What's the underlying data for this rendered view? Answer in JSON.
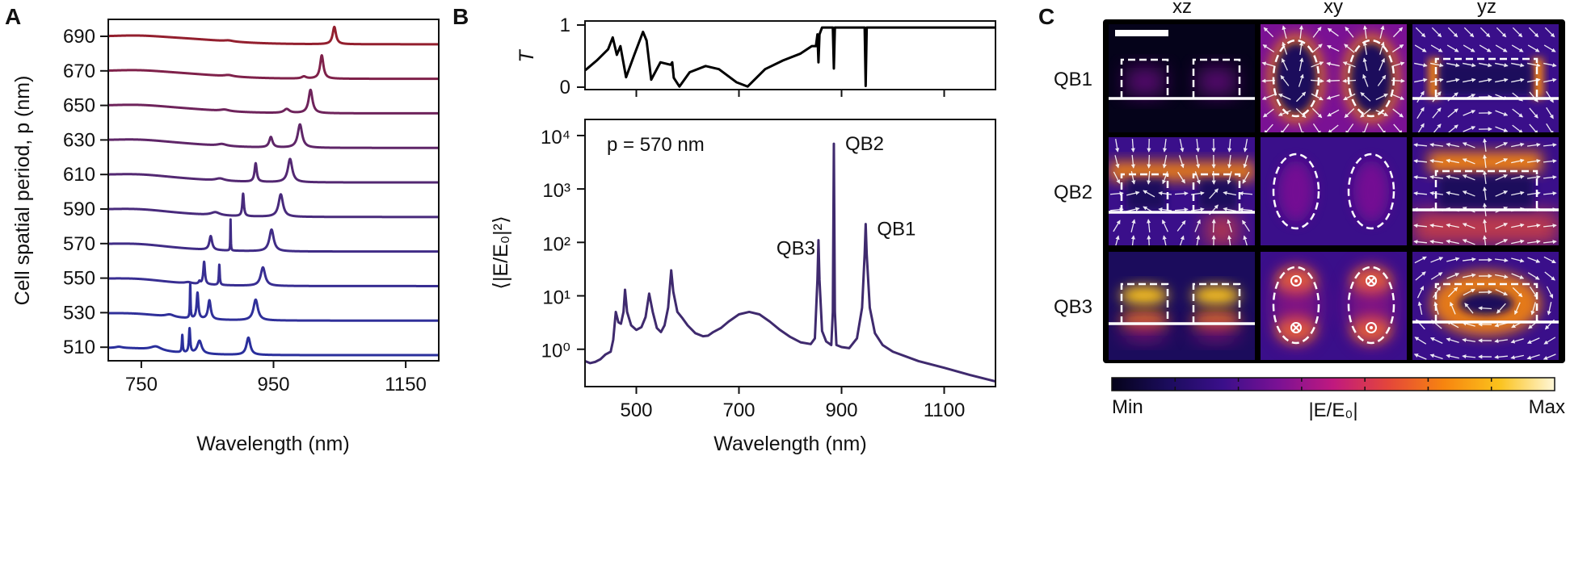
{
  "panel_labels": {
    "a": "A",
    "b": "B",
    "c": "C"
  },
  "chart_data": [
    {
      "id": "A",
      "type": "line",
      "xlabel": "Wavelength (nm)",
      "ylabel": "Cell spatial period, p (nm)",
      "xlim": [
        700,
        1200
      ],
      "xticks": [
        750,
        950,
        1150
      ],
      "xtick_labels": [
        "750",
        "950",
        "1150"
      ],
      "yticks": [
        510,
        530,
        550,
        570,
        590,
        610,
        630,
        650,
        670,
        690
      ],
      "ytick_labels": [
        "510",
        "530",
        "550",
        "570",
        "590",
        "610",
        "630",
        "650",
        "670",
        "690"
      ],
      "grid": false,
      "offset_spectra": true,
      "series": [
        {
          "period": 510,
          "color": "#2a2f9c",
          "peaks": [
            [
              716,
              0.7,
              6
            ],
            [
              772,
              2.3,
              10
            ],
            [
              812,
              10,
              0.8
            ],
            [
              823,
              14,
              1.2
            ],
            [
              838,
              7.5,
              4
            ],
            [
              912,
              10,
              3.5
            ]
          ]
        },
        {
          "period": 530,
          "color": "#30309a",
          "peaks": [
            [
              793,
              1.4,
              8
            ],
            [
              824,
              20,
              0.6
            ],
            [
              835,
              15,
              1.6
            ],
            [
              853,
              11,
              2.5
            ],
            [
              923,
              12,
              4
            ]
          ]
        },
        {
          "period": 550,
          "color": "#382e92",
          "peaks": [
            [
              821,
              0.8,
              6
            ],
            [
              838,
              1.5,
              1.5
            ],
            [
              845,
              13,
              1.5
            ],
            [
              868,
              11.7,
              0.8
            ],
            [
              934,
              10.7,
              4
            ]
          ]
        },
        {
          "period": 570,
          "color": "#402c86",
          "peaks": [
            [
              855,
              8,
              2.5
            ],
            [
              885,
              18,
              0.4
            ],
            [
              947,
              12.6,
              4
            ]
          ]
        },
        {
          "period": 590,
          "color": "#482a7c",
          "peaks": [
            [
              862,
              1.8,
              8
            ],
            [
              904,
              13,
              1.4
            ],
            [
              961,
              13,
              4
            ]
          ]
        },
        {
          "period": 610,
          "color": "#532872",
          "peaks": [
            [
              869,
              1.3,
              8
            ],
            [
              923,
              10.7,
              2
            ],
            [
              975,
              13.5,
              4
            ]
          ]
        },
        {
          "period": 630,
          "color": "#5f2668",
          "peaks": [
            [
              872,
              1.1,
              8
            ],
            [
              946,
              6,
              3
            ],
            [
              990,
              13.5,
              4
            ]
          ]
        },
        {
          "period": 650,
          "color": "#6e235b",
          "peaks": [
            [
              876,
              0.9,
              8
            ],
            [
              970,
              2.3,
              5
            ],
            [
              1006,
              13.5,
              3.5
            ]
          ]
        },
        {
          "period": 670,
          "color": "#7f214a",
          "peaks": [
            [
              882,
              0.8,
              8
            ],
            [
              996,
              1.2,
              4
            ],
            [
              1023,
              13.5,
              3
            ]
          ]
        },
        {
          "period": 690,
          "color": "#931f2e",
          "peaks": [
            [
              882,
              0.6,
              8
            ],
            [
              1042,
              10,
              3
            ]
          ]
        }
      ]
    },
    {
      "id": "B-top",
      "type": "line",
      "ylabel": "T",
      "xlim": [
        400,
        1200
      ],
      "ylim": [
        0,
        1
      ],
      "xticks": [
        500,
        700,
        900,
        1100
      ],
      "yticks": [
        0,
        1
      ],
      "ytick_labels": [
        "0",
        "1"
      ],
      "color": "#000000",
      "points": [
        [
          400,
          0.27
        ],
        [
          403,
          0.29
        ],
        [
          423,
          0.43
        ],
        [
          445,
          0.61
        ],
        [
          454,
          0.8
        ],
        [
          462,
          0.52
        ],
        [
          469,
          0.66
        ],
        [
          480,
          0.16
        ],
        [
          496,
          0.52
        ],
        [
          513,
          0.89
        ],
        [
          520,
          0.75
        ],
        [
          529,
          0.12
        ],
        [
          547,
          0.4
        ],
        [
          567,
          0.36
        ],
        [
          570,
          0.4
        ],
        [
          573,
          0.15
        ],
        [
          584,
          0.01
        ],
        [
          604,
          0.24
        ],
        [
          635,
          0.34
        ],
        [
          661,
          0.29
        ],
        [
          695,
          0.08
        ],
        [
          717,
          0.01
        ],
        [
          751,
          0.29
        ],
        [
          786,
          0.43
        ],
        [
          820,
          0.54
        ],
        [
          842,
          0.66
        ],
        [
          850,
          0.66
        ],
        [
          853,
          0.85
        ],
        [
          855,
          0.4
        ],
        [
          857,
          0.85
        ],
        [
          862,
          0.96
        ],
        [
          883,
          0.96
        ],
        [
          885,
          0.3
        ],
        [
          887,
          0.96
        ],
        [
          945,
          0.96
        ],
        [
          947,
          0.02
        ],
        [
          949,
          0.96
        ],
        [
          1200,
          0.96
        ]
      ]
    },
    {
      "id": "B-bottom",
      "type": "line",
      "xlabel": "Wavelength (nm)",
      "ylabel": "⟨|E/E₀|²⟩",
      "yscale": "log",
      "xlim": [
        400,
        1200
      ],
      "ylim": [
        0.2,
        20000
      ],
      "xticks": [
        500,
        700,
        900,
        1100
      ],
      "xtick_labels": [
        "500",
        "700",
        "900",
        "1100"
      ],
      "yticks": [
        1,
        10,
        100,
        1000,
        10000
      ],
      "ytick_labels": [
        "10⁰",
        "10¹",
        "10²",
        "10³",
        "10⁴"
      ],
      "color": "#3f2a6e",
      "annotation": "p = 570 nm",
      "peak_labels": [
        {
          "text": "QB3",
          "wavelength": 855,
          "value": 110
        },
        {
          "text": "QB2",
          "wavelength": 885,
          "value": 7000
        },
        {
          "text": "QB1",
          "wavelength": 947,
          "value": 220
        }
      ],
      "points": [
        [
          400,
          0.6
        ],
        [
          410,
          0.55
        ],
        [
          420,
          0.58
        ],
        [
          430,
          0.65
        ],
        [
          440,
          0.8
        ],
        [
          450,
          0.9
        ],
        [
          455,
          1.5
        ],
        [
          460,
          5
        ],
        [
          465,
          3.2
        ],
        [
          470,
          3
        ],
        [
          475,
          5
        ],
        [
          478,
          13
        ],
        [
          482,
          5
        ],
        [
          490,
          2.8
        ],
        [
          500,
          2.3
        ],
        [
          510,
          2.6
        ],
        [
          518,
          4
        ],
        [
          525,
          11
        ],
        [
          532,
          5
        ],
        [
          540,
          2.5
        ],
        [
          548,
          2.1
        ],
        [
          555,
          2.8
        ],
        [
          562,
          6
        ],
        [
          568,
          30
        ],
        [
          572,
          12
        ],
        [
          580,
          5
        ],
        [
          590,
          3.8
        ],
        [
          600,
          2.8
        ],
        [
          615,
          2
        ],
        [
          630,
          1.75
        ],
        [
          640,
          1.8
        ],
        [
          650,
          2.1
        ],
        [
          665,
          2.5
        ],
        [
          680,
          3.3
        ],
        [
          700,
          4.5
        ],
        [
          720,
          5
        ],
        [
          740,
          4.5
        ],
        [
          760,
          3.3
        ],
        [
          780,
          2.3
        ],
        [
          800,
          1.7
        ],
        [
          820,
          1.35
        ],
        [
          840,
          1.25
        ],
        [
          848,
          1.6
        ],
        [
          853,
          20
        ],
        [
          855,
          110
        ],
        [
          857,
          20
        ],
        [
          862,
          2.2
        ],
        [
          870,
          1.4
        ],
        [
          880,
          1.2
        ],
        [
          883,
          5
        ],
        [
          885,
          7000
        ],
        [
          887,
          5
        ],
        [
          890,
          1.2
        ],
        [
          900,
          1.1
        ],
        [
          915,
          1.05
        ],
        [
          930,
          1.6
        ],
        [
          940,
          6
        ],
        [
          945,
          60
        ],
        [
          947,
          220
        ],
        [
          949,
          60
        ],
        [
          955,
          6
        ],
        [
          965,
          2
        ],
        [
          980,
          1.2
        ],
        [
          1000,
          0.9
        ],
        [
          1050,
          0.6
        ],
        [
          1100,
          0.45
        ],
        [
          1150,
          0.33
        ],
        [
          1200,
          0.25
        ]
      ]
    },
    {
      "id": "C",
      "type": "heatmap",
      "columns": [
        "xz",
        "xy",
        "yz"
      ],
      "rows": [
        "QB1",
        "QB2",
        "QB3"
      ],
      "colorbar": {
        "label": "|E/E₀|",
        "min_label": "Min",
        "max_label": "Max",
        "colors": [
          "#05031a",
          "#1b0c5c",
          "#3a0f8a",
          "#7a1194",
          "#c0197f",
          "#e4463a",
          "#f7850f",
          "#fbc21c",
          "#fff7d8"
        ]
      },
      "xy_QB3_markers": [
        "dot",
        "cross",
        "cross",
        "dot"
      ]
    }
  ]
}
